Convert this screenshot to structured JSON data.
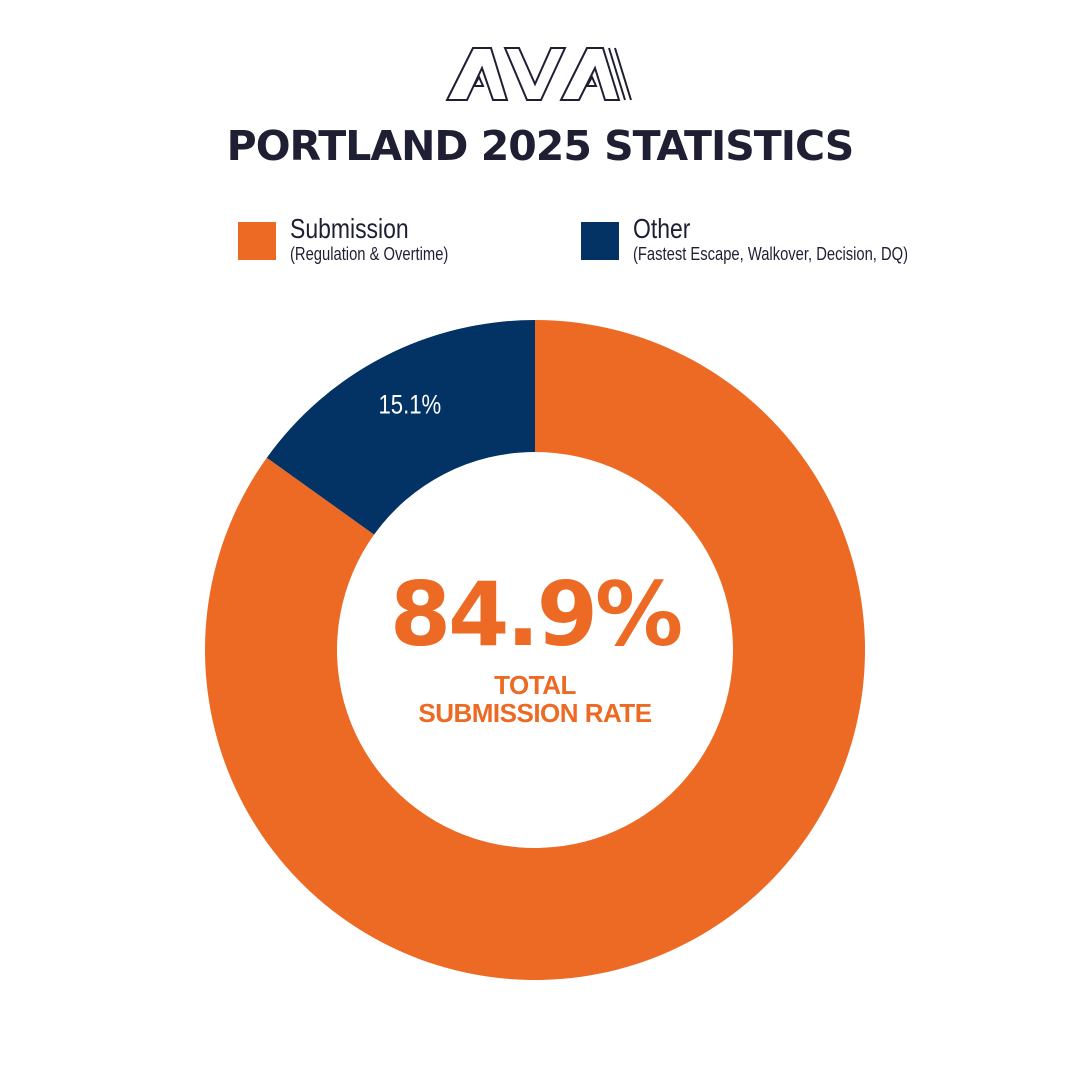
{
  "logo": {
    "text": "AVA",
    "icon": "ava-logo-icon"
  },
  "title": "PORTLAND 2025 STATISTICS",
  "colors": {
    "submission": "#ec6a24",
    "other": "#033365",
    "text": "#1f1f33",
    "background": "#ffffff"
  },
  "legend": [
    {
      "name": "Submission",
      "sub": "(Regulation & Overtime)"
    },
    {
      "name": "Other",
      "sub": "(Fastest Escape, Walkover, Decision, DQ)"
    }
  ],
  "center": {
    "value": "84.9%",
    "label_line1": "TOTAL",
    "label_line2": "SUBMISSION RATE"
  },
  "chart_data": {
    "type": "pie",
    "donut": true,
    "title": "PORTLAND 2025 STATISTICS",
    "legend_position": "top",
    "slices": [
      {
        "label": "Submission",
        "value": 84.9,
        "color": "#ec6a24",
        "data_label": ""
      },
      {
        "label": "Other",
        "value": 15.1,
        "color": "#033365",
        "data_label": "15.1%"
      }
    ]
  }
}
